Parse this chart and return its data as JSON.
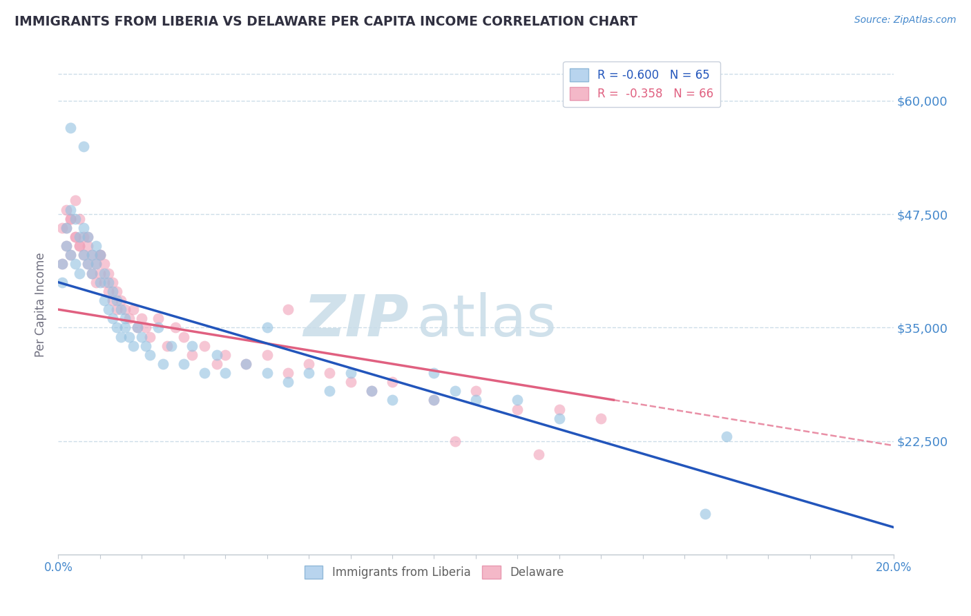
{
  "title": "IMMIGRANTS FROM LIBERIA VS DELAWARE PER CAPITA INCOME CORRELATION CHART",
  "source": "Source: ZipAtlas.com",
  "ylabel": "Per Capita Income",
  "xlim": [
    0.0,
    0.2
  ],
  "ylim": [
    10000,
    65000
  ],
  "yticks": [
    22500,
    35000,
    47500,
    60000
  ],
  "ytick_labels": [
    "$22,500",
    "$35,000",
    "$47,500",
    "$60,000"
  ],
  "blue_color": "#92c0e0",
  "pink_color": "#f0a0b8",
  "blue_line_color": "#2255bb",
  "pink_line_color": "#e06080",
  "legend_blue_fill": "#b8d4ee",
  "legend_pink_fill": "#f4b8c8",
  "axis_label_color": "#4488cc",
  "grid_color": "#ccdde8",
  "background_color": "#ffffff",
  "watermark_color": "#c8dce8",
  "blue_line_intercept": 40000,
  "blue_line_slope": -135000,
  "pink_line_intercept": 37000,
  "pink_line_slope": -75000,
  "pink_line_solid_end": 0.133,
  "blue_scatter_x": [
    0.001,
    0.001,
    0.002,
    0.002,
    0.003,
    0.003,
    0.004,
    0.004,
    0.005,
    0.005,
    0.006,
    0.006,
    0.007,
    0.007,
    0.008,
    0.008,
    0.009,
    0.009,
    0.01,
    0.01,
    0.011,
    0.011,
    0.012,
    0.012,
    0.013,
    0.013,
    0.014,
    0.014,
    0.015,
    0.015,
    0.016,
    0.016,
    0.017,
    0.018,
    0.019,
    0.02,
    0.021,
    0.022,
    0.024,
    0.025,
    0.027,
    0.03,
    0.032,
    0.035,
    0.038,
    0.04,
    0.045,
    0.05,
    0.055,
    0.06,
    0.065,
    0.07,
    0.075,
    0.08,
    0.09,
    0.095,
    0.1,
    0.11,
    0.12,
    0.16,
    0.003,
    0.006,
    0.05,
    0.09,
    0.155
  ],
  "blue_scatter_y": [
    40000,
    42000,
    44000,
    46000,
    43000,
    48000,
    42000,
    47000,
    41000,
    45000,
    43000,
    46000,
    42000,
    45000,
    41000,
    43000,
    42000,
    44000,
    40000,
    43000,
    41000,
    38000,
    40000,
    37000,
    39000,
    36000,
    38000,
    35000,
    37000,
    34000,
    36000,
    35000,
    34000,
    33000,
    35000,
    34000,
    33000,
    32000,
    35000,
    31000,
    33000,
    31000,
    33000,
    30000,
    32000,
    30000,
    31000,
    30000,
    29000,
    30000,
    28000,
    30000,
    28000,
    27000,
    27000,
    28000,
    27000,
    27000,
    25000,
    23000,
    57000,
    55000,
    35000,
    30000,
    14500
  ],
  "pink_scatter_x": [
    0.001,
    0.001,
    0.002,
    0.002,
    0.003,
    0.003,
    0.004,
    0.004,
    0.005,
    0.005,
    0.006,
    0.006,
    0.007,
    0.007,
    0.008,
    0.008,
    0.009,
    0.009,
    0.01,
    0.01,
    0.011,
    0.011,
    0.012,
    0.012,
    0.013,
    0.013,
    0.014,
    0.014,
    0.015,
    0.016,
    0.017,
    0.018,
    0.019,
    0.02,
    0.021,
    0.022,
    0.024,
    0.026,
    0.028,
    0.03,
    0.032,
    0.035,
    0.038,
    0.04,
    0.045,
    0.05,
    0.055,
    0.06,
    0.065,
    0.07,
    0.075,
    0.08,
    0.09,
    0.1,
    0.11,
    0.12,
    0.13,
    0.002,
    0.003,
    0.004,
    0.005,
    0.007,
    0.01,
    0.055,
    0.095,
    0.115
  ],
  "pink_scatter_y": [
    42000,
    46000,
    44000,
    48000,
    43000,
    47000,
    45000,
    49000,
    44000,
    47000,
    43000,
    45000,
    44000,
    42000,
    43000,
    41000,
    42000,
    40000,
    41000,
    43000,
    40000,
    42000,
    39000,
    41000,
    38000,
    40000,
    37000,
    39000,
    38000,
    37000,
    36000,
    37000,
    35000,
    36000,
    35000,
    34000,
    36000,
    33000,
    35000,
    34000,
    32000,
    33000,
    31000,
    32000,
    31000,
    32000,
    30000,
    31000,
    30000,
    29000,
    28000,
    29000,
    27000,
    28000,
    26000,
    26000,
    25000,
    46000,
    47000,
    45000,
    44000,
    45000,
    43000,
    37000,
    22500,
    21000
  ]
}
